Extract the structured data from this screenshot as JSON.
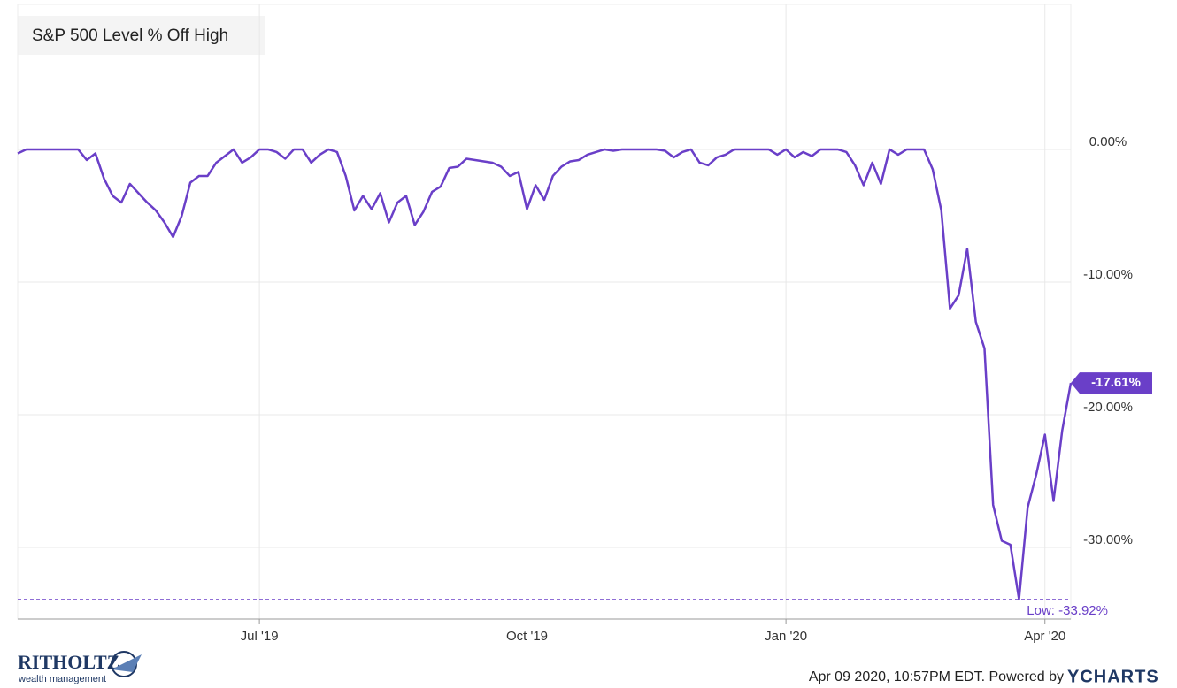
{
  "chart_data": {
    "type": "line",
    "title": "S&P 500 Level % Off High",
    "categories": [
      null,
      null,
      null,
      null,
      null,
      null,
      null,
      null,
      null,
      null,
      null,
      null,
      null,
      null,
      null,
      null,
      null,
      null,
      null,
      null,
      null,
      null,
      null,
      null,
      null,
      null,
      null,
      null,
      "Jul '19",
      null,
      null,
      null,
      null,
      null,
      null,
      null,
      null,
      null,
      null,
      null,
      null,
      null,
      null,
      null,
      null,
      null,
      null,
      null,
      null,
      null,
      null,
      null,
      null,
      null,
      null,
      null,
      null,
      null,
      null,
      "Oct '19",
      null,
      null,
      null,
      null,
      null,
      null,
      null,
      null,
      null,
      null,
      null,
      null,
      null,
      null,
      null,
      null,
      null,
      null,
      null,
      null,
      null,
      null,
      null,
      null,
      null,
      null,
      null,
      null,
      null,
      "Jan '20",
      null,
      null,
      null,
      null,
      null,
      null,
      null,
      null,
      null,
      null,
      null,
      null,
      null,
      null,
      null,
      null,
      null,
      null,
      null,
      null,
      null,
      null,
      null,
      null,
      null,
      null,
      null,
      null,
      null,
      "Apr '20",
      null,
      null,
      null
    ],
    "values": [
      -0.3,
      0,
      0,
      0,
      0,
      0,
      0,
      0,
      -0.8,
      -0.3,
      -2.2,
      -3.5,
      -4,
      -2.6,
      -3.3,
      -4,
      -4.6,
      -5.5,
      -6.6,
      -5,
      -2.5,
      -2,
      -2,
      -1,
      -0.5,
      0,
      -1,
      -0.6,
      0,
      0,
      -0.2,
      -0.7,
      0,
      0,
      -1,
      -0.4,
      0,
      -0.2,
      -2,
      -4.6,
      -3.5,
      -4.5,
      -3.3,
      -5.5,
      -4,
      -3.5,
      -5.7,
      -4.7,
      -3.2,
      -2.8,
      -1.4,
      -1.3,
      -0.7,
      -0.8,
      -0.9,
      -1,
      -1.3,
      -2,
      -1.7,
      -4.5,
      -2.7,
      -3.8,
      -2,
      -1.3,
      -0.9,
      -0.8,
      -0.4,
      -0.2,
      0,
      -0.1,
      0,
      0,
      0,
      0,
      0,
      -0.1,
      -0.6,
      -0.2,
      0,
      -1,
      -1.2,
      -0.6,
      -0.4,
      0,
      0,
      0,
      0,
      0,
      -0.4,
      0,
      -0.6,
      -0.2,
      -0.5,
      0,
      0,
      0,
      -0.2,
      -1.2,
      -2.7,
      -1,
      -2.6,
      0,
      -0.4,
      0,
      0,
      0,
      -1.5,
      -4.6,
      -12,
      -11,
      -7.5,
      -13,
      -15,
      -26.8,
      -29.5,
      -29.8,
      -33.92,
      -27,
      -24.5,
      -21.5,
      -26.5,
      -21.2,
      -17.61
    ],
    "color": "#6a3fc8",
    "ylim": [
      -35.4,
      10.93
    ],
    "yticks": [
      {
        "value": 0,
        "label": "0.00%"
      },
      {
        "value": -10,
        "label": "-10.00%"
      },
      {
        "value": -20,
        "label": "-20.00%"
      },
      {
        "value": -30,
        "label": "-30.00%"
      }
    ],
    "grid": true,
    "last_label": {
      "value": -17.61,
      "label": "-17.61%"
    },
    "low": {
      "value": -33.92,
      "label": "Low: -33.92%"
    }
  },
  "footer": {
    "timestamp": "Apr 09 2020, 10:57PM EDT. Powered by",
    "brand": "YCHARTS"
  },
  "logo": {
    "name": "RITHOLTZ",
    "tagline": "wealth management"
  }
}
